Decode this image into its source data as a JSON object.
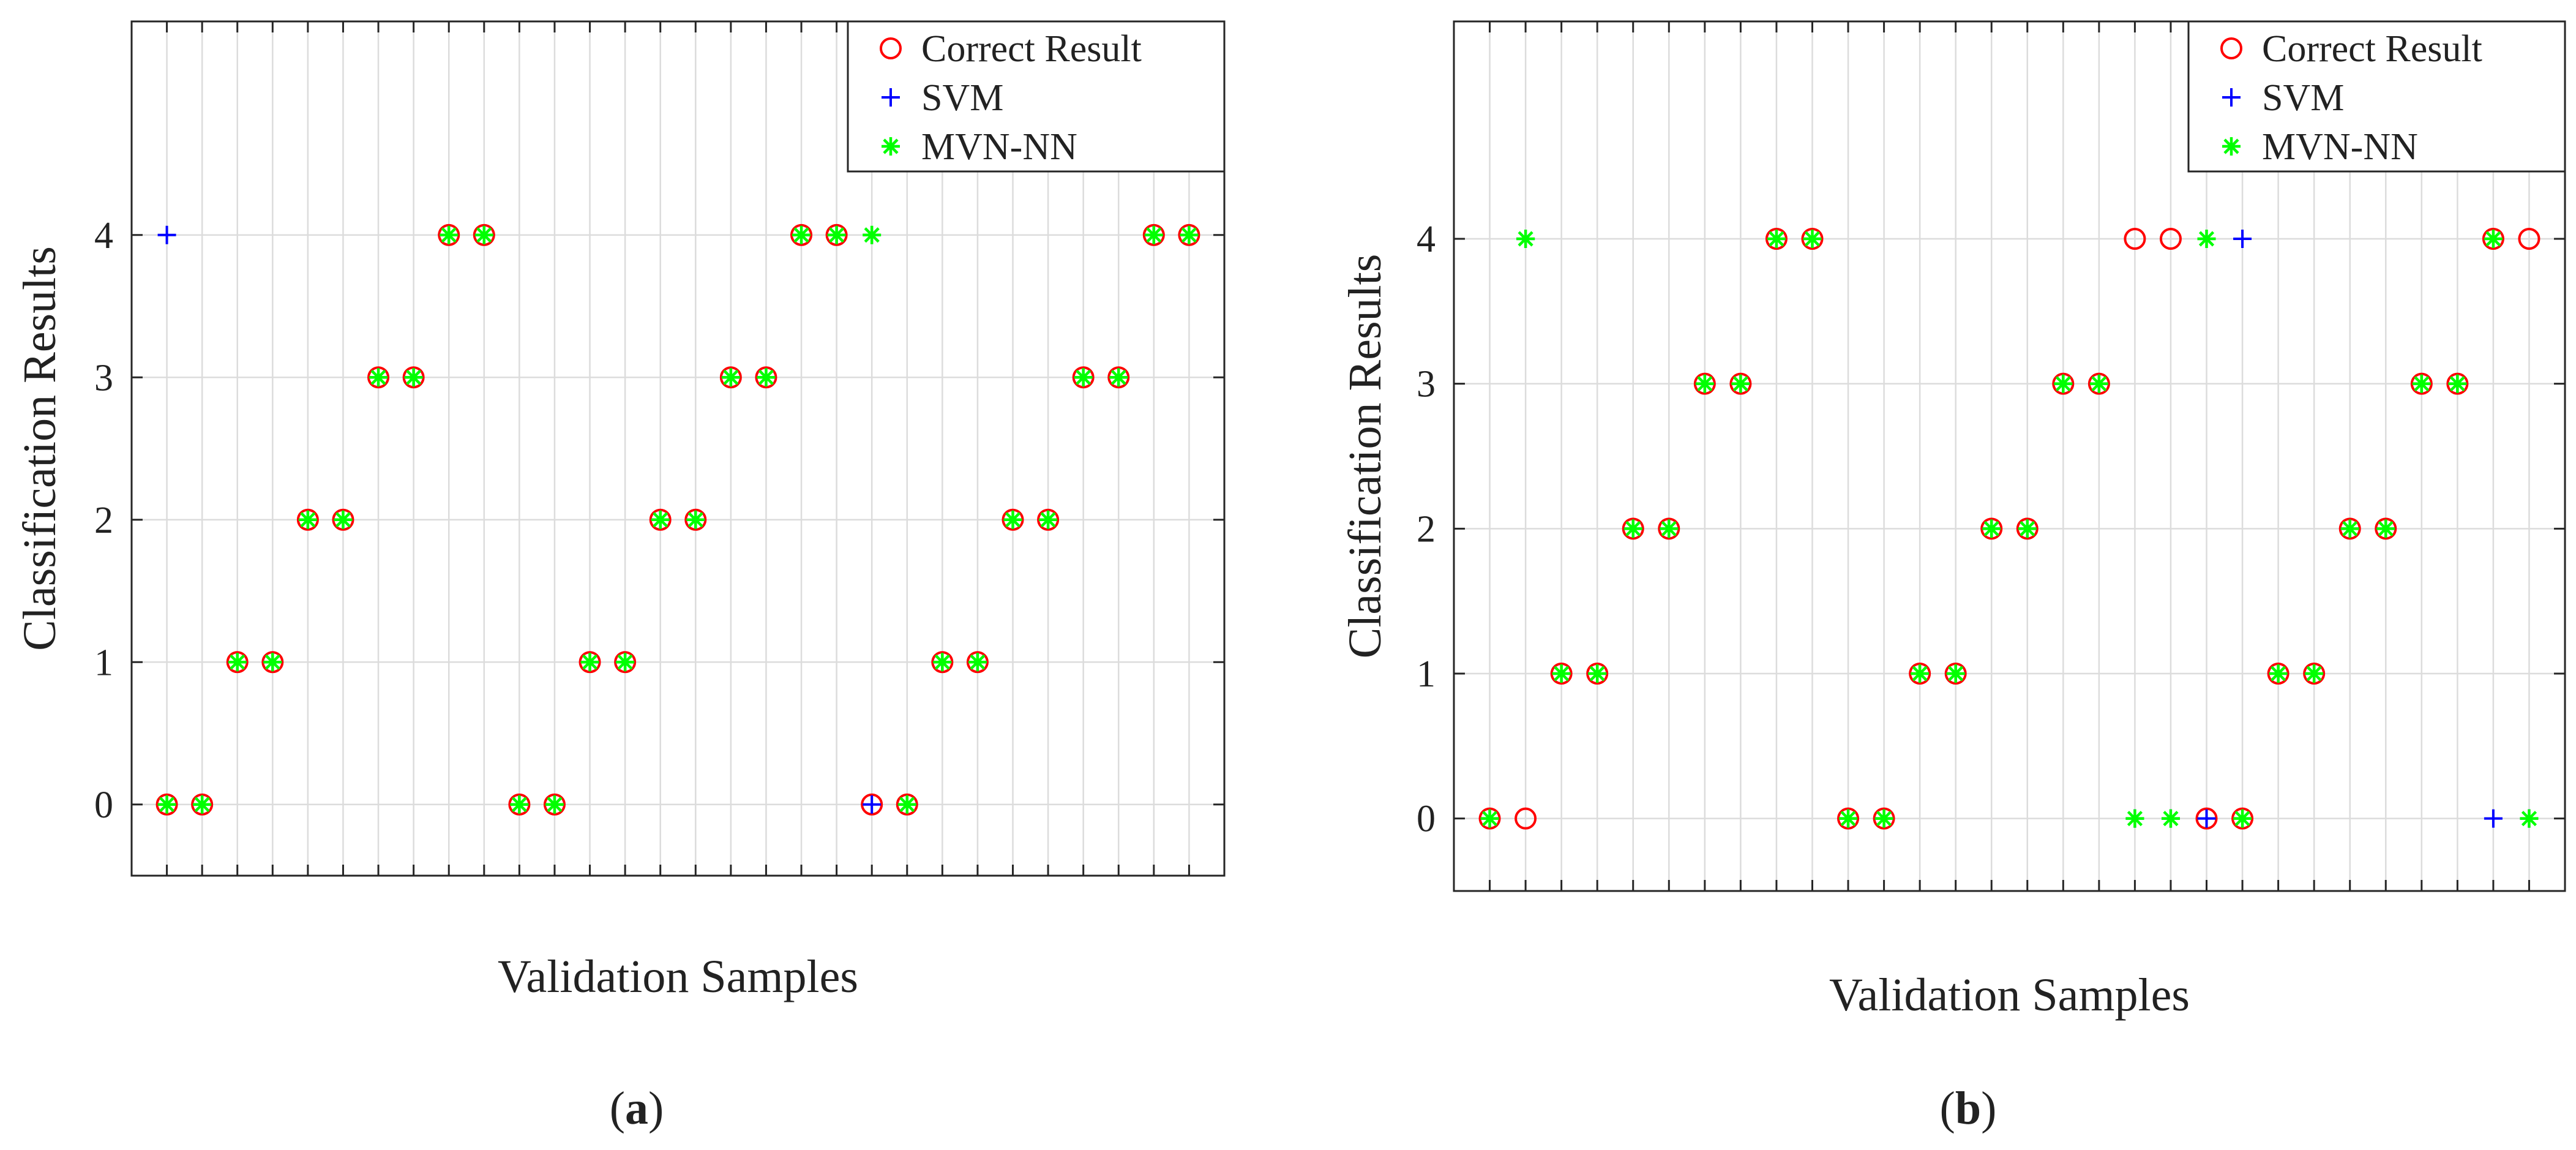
{
  "chart_data": [
    {
      "type": "scatter",
      "panel_label": "a",
      "xlabel": "Validation Samples",
      "ylabel": "Classification Results",
      "yticks": [
        0,
        1,
        2,
        3,
        4
      ],
      "ylim": [
        -0.5,
        5.5
      ],
      "xlim": [
        0,
        31
      ],
      "grid": true,
      "legend_position": "top-right",
      "series": [
        {
          "name": "Correct Result",
          "marker": "circle",
          "color": "#ff0000",
          "values": [
            0,
            0,
            1,
            1,
            2,
            2,
            3,
            3,
            4,
            4,
            0,
            0,
            1,
            1,
            2,
            2,
            3,
            3,
            4,
            4,
            0,
            0,
            1,
            1,
            2,
            2,
            3,
            3,
            4,
            4
          ]
        },
        {
          "name": "SVM",
          "marker": "plus",
          "color": "#0000ff",
          "values": [
            4,
            0,
            1,
            1,
            2,
            2,
            3,
            3,
            4,
            4,
            0,
            0,
            1,
            1,
            2,
            2,
            3,
            3,
            4,
            4,
            0,
            0,
            1,
            1,
            2,
            2,
            3,
            3,
            4,
            4
          ]
        },
        {
          "name": "MVN-NN",
          "marker": "asterisk",
          "color": "#00ff00",
          "values": [
            0,
            0,
            1,
            1,
            2,
            2,
            3,
            3,
            4,
            4,
            0,
            0,
            1,
            1,
            2,
            2,
            3,
            3,
            4,
            4,
            4,
            0,
            1,
            1,
            2,
            2,
            3,
            3,
            4,
            4
          ]
        }
      ]
    },
    {
      "type": "scatter",
      "panel_label": "b",
      "xlabel": "Validation Samples",
      "ylabel": "Classification Results",
      "yticks": [
        0,
        1,
        2,
        3,
        4
      ],
      "ylim": [
        -0.5,
        5.5
      ],
      "xlim": [
        0,
        31
      ],
      "grid": true,
      "legend_position": "top-right",
      "series": [
        {
          "name": "Correct Result",
          "marker": "circle",
          "color": "#ff0000",
          "values": [
            0,
            0,
            1,
            1,
            2,
            2,
            3,
            3,
            4,
            4,
            0,
            0,
            1,
            1,
            2,
            2,
            3,
            3,
            4,
            4,
            0,
            0,
            1,
            1,
            2,
            2,
            3,
            3,
            4,
            4
          ]
        },
        {
          "name": "SVM",
          "marker": "plus",
          "color": "#0000ff",
          "values": [
            0,
            4,
            1,
            1,
            2,
            2,
            3,
            3,
            4,
            4,
            0,
            0,
            1,
            1,
            2,
            2,
            3,
            3,
            0,
            0,
            0,
            4,
            1,
            1,
            2,
            2,
            3,
            3,
            0,
            0
          ]
        },
        {
          "name": "MVN-NN",
          "marker": "asterisk",
          "color": "#00ff00",
          "values": [
            0,
            4,
            1,
            1,
            2,
            2,
            3,
            3,
            4,
            4,
            0,
            0,
            1,
            1,
            2,
            2,
            3,
            3,
            0,
            0,
            4,
            0,
            1,
            1,
            2,
            2,
            3,
            3,
            4,
            0
          ]
        }
      ]
    }
  ]
}
